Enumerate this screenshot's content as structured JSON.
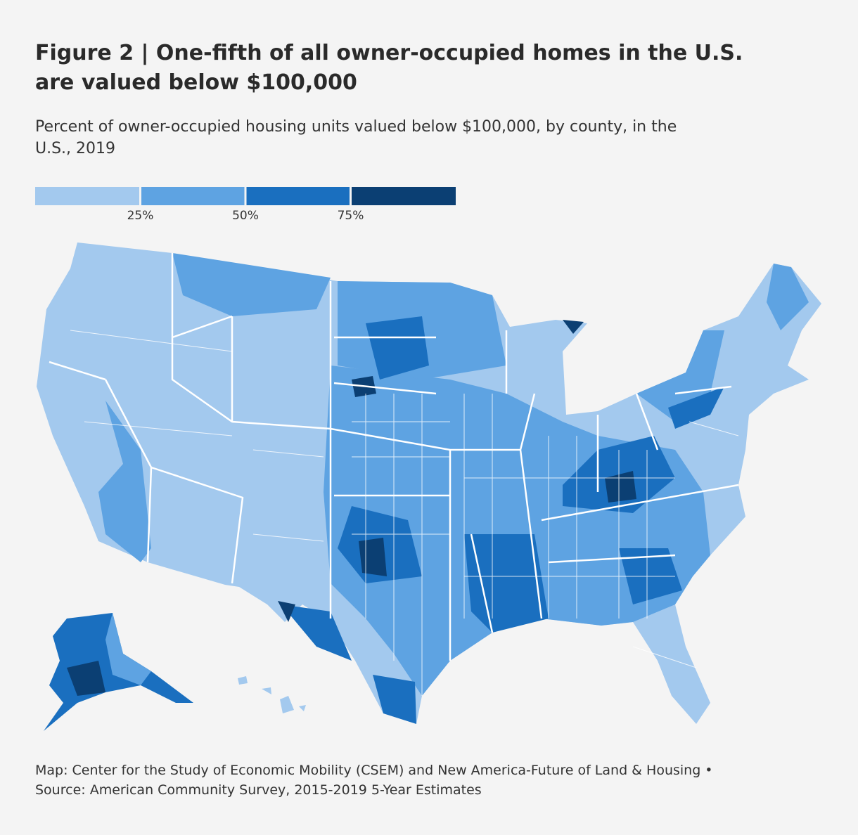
{
  "header": {
    "title_lines": [
      "Figure 2 | One-fifth of all owner-occupied homes in the U.S.",
      "are valued below $100,000"
    ],
    "subtitle_lines": [
      "Percent of owner-occupied housing units valued below $100,000, by county, in the",
      "U.S., 2019"
    ]
  },
  "legend": {
    "range": [
      0,
      100
    ],
    "bins": [
      0,
      25,
      50,
      75,
      100
    ],
    "colors": [
      "#a3c9ee",
      "#5ea3e2",
      "#1a6fbf",
      "#0b3f73"
    ],
    "ticks": [
      {
        "value": 25,
        "label": "25%"
      },
      {
        "value": 50,
        "label": "50%"
      },
      {
        "value": 75,
        "label": "75%"
      }
    ]
  },
  "footer": {
    "lines": [
      "Map: Center for the Study of Economic Mobility (CSEM) and New America-Future of Land & Housing •",
      "Source: American Community Survey, 2015-2019 5-Year Estimates"
    ]
  }
}
